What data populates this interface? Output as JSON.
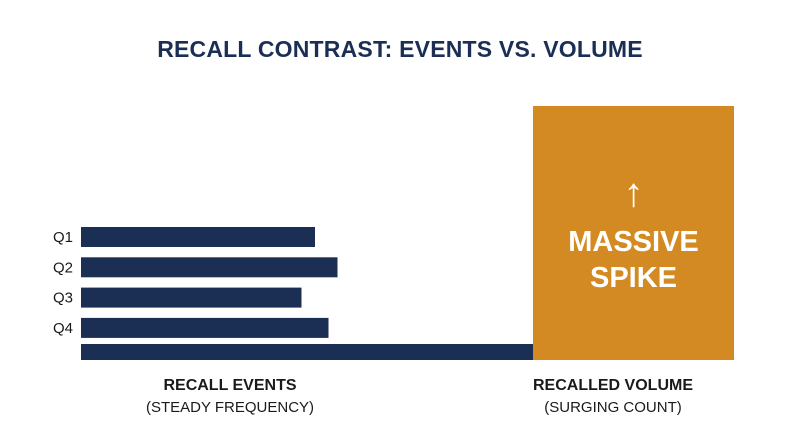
{
  "chart_data": {
    "type": "bar",
    "title": "RECALL CONTRAST: EVENTS VS. VOLUME",
    "categories": [
      "Q1",
      "Q2",
      "Q3",
      "Q4"
    ],
    "values": [
      52,
      57,
      49,
      55
    ],
    "groups": [
      {
        "label": "RECALL EVENTS",
        "sublabel": "(STEADY FREQUENCY)"
      },
      {
        "label": "RECALLED VOLUME",
        "sublabel": "(SURGING COUNT)"
      }
    ],
    "annotation": {
      "line1": "MASSIVE",
      "line2": "SPIKE",
      "arrow": "↑"
    },
    "colors": {
      "events": "#1b2f55",
      "volume": "#d48a22"
    }
  }
}
